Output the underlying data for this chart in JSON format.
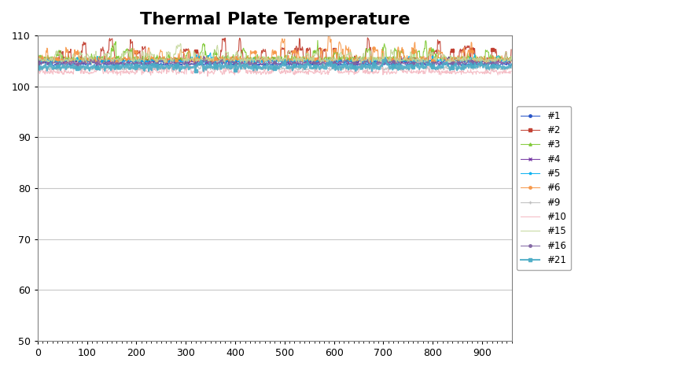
{
  "title": "Thermal Plate Temperature",
  "title_fontsize": 16,
  "xlim": [
    0,
    960
  ],
  "ylim": [
    50,
    110
  ],
  "yticks": [
    50,
    60,
    70,
    80,
    90,
    100,
    110
  ],
  "xticks": [
    0,
    100,
    200,
    300,
    400,
    500,
    600,
    700,
    800,
    900
  ],
  "n_points": 960,
  "series": [
    {
      "label": "#1",
      "color": "#214fc6",
      "marker": "o",
      "base": 104.3,
      "noise": 0.15,
      "spike_prob": 0.01,
      "spike_amp": 0.5,
      "lw": 0.8,
      "ms": 2.5,
      "markevery": 40
    },
    {
      "label": "#2",
      "color": "#c0392b",
      "marker": "s",
      "base": 105.2,
      "noise": 0.25,
      "spike_prob": 0.04,
      "spike_amp": 1.5,
      "lw": 0.8,
      "ms": 2.5,
      "markevery": 40
    },
    {
      "label": "#3",
      "color": "#7dc832",
      "marker": "^",
      "base": 105.4,
      "noise": 0.3,
      "spike_prob": 0.03,
      "spike_amp": 1.2,
      "lw": 0.8,
      "ms": 2.5,
      "markevery": 40
    },
    {
      "label": "#4",
      "color": "#7030a0",
      "marker": "x",
      "base": 104.8,
      "noise": 0.15,
      "spike_prob": 0.01,
      "spike_amp": 0.4,
      "lw": 0.8,
      "ms": 2.5,
      "markevery": 40
    },
    {
      "label": "#5",
      "color": "#00b0f0",
      "marker": "*",
      "base": 105.0,
      "noise": 0.2,
      "spike_prob": 0.01,
      "spike_amp": 0.5,
      "lw": 0.8,
      "ms": 2.5,
      "markevery": 40
    },
    {
      "label": "#6",
      "color": "#f79646",
      "marker": "o",
      "base": 105.3,
      "noise": 0.3,
      "spike_prob": 0.04,
      "spike_amp": 1.3,
      "lw": 0.8,
      "ms": 2.5,
      "markevery": 40
    },
    {
      "label": "#9",
      "color": "#bdbdbd",
      "marker": "+",
      "base": 103.5,
      "noise": 0.2,
      "spike_prob": 0.02,
      "spike_amp": 0.5,
      "lw": 0.8,
      "ms": 2.5,
      "markevery": 40
    },
    {
      "label": "#10",
      "color": "#f4b8c1",
      "marker": null,
      "base": 102.8,
      "noise": 0.25,
      "spike_prob": 0.03,
      "spike_amp": 0.8,
      "lw": 0.8,
      "ms": 0,
      "markevery": null
    },
    {
      "label": "#15",
      "color": "#c4d79b",
      "marker": null,
      "base": 105.2,
      "noise": 0.3,
      "spike_prob": 0.03,
      "spike_amp": 1.0,
      "lw": 0.8,
      "ms": 0,
      "markevery": null
    },
    {
      "label": "#16",
      "color": "#8064a2",
      "marker": "o",
      "base": 104.5,
      "noise": 0.15,
      "spike_prob": 0.01,
      "spike_amp": 0.4,
      "lw": 0.8,
      "ms": 2.5,
      "markevery": 40
    },
    {
      "label": "#21",
      "color": "#4bacc6",
      "marker": "s",
      "base": 103.8,
      "noise": 0.3,
      "spike_prob": 0.01,
      "spike_amp": 0.5,
      "lw": 1.5,
      "ms": 2.5,
      "markevery": 40
    }
  ],
  "background_color": "#ffffff",
  "grid_color": "#c8c8c8",
  "legend_fontsize": 8.5
}
